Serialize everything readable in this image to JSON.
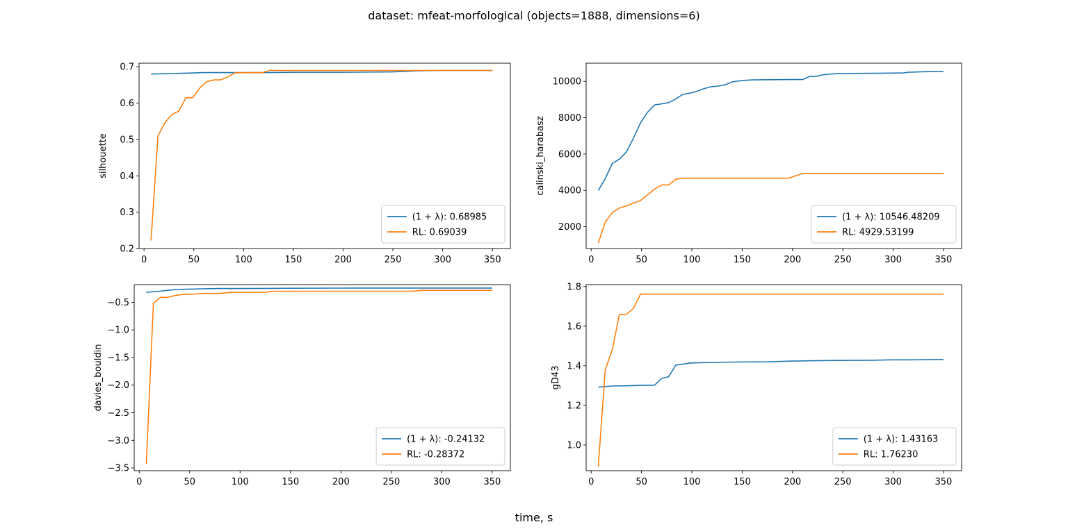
{
  "figure": {
    "title": "dataset: mfeat-morfological (objects=1888, dimensions=6)",
    "xlabel": "time, s"
  },
  "colors": {
    "series_1": "#1f77b4",
    "series_2": "#ff7f0e"
  },
  "chart_data": [
    {
      "type": "line",
      "ylabel": "silhouette",
      "xlim": [
        -5,
        368
      ],
      "ylim": [
        0.2,
        0.71
      ],
      "xticks": [
        0,
        50,
        100,
        150,
        200,
        250,
        300,
        350
      ],
      "yticks": [
        0.2,
        0.3,
        0.4,
        0.5,
        0.6,
        0.7
      ],
      "ytick_labels": [
        "0.2",
        "0.3",
        "0.4",
        "0.5",
        "0.6",
        "0.7"
      ],
      "legend": "lower-right",
      "series": [
        {
          "name": "(1 + λ): 0.68985",
          "x": [
            7,
            20,
            35,
            50,
            60,
            80,
            100,
            120,
            150,
            200,
            250,
            260,
            275,
            300,
            350
          ],
          "y": [
            0.68,
            0.681,
            0.682,
            0.683,
            0.684,
            0.684,
            0.684,
            0.684,
            0.685,
            0.685,
            0.686,
            0.687,
            0.689,
            0.69,
            0.69
          ]
        },
        {
          "name": "RL: 0.69039",
          "x": [
            7,
            14,
            21,
            28,
            35,
            42,
            49,
            56,
            63,
            70,
            77,
            84,
            91,
            105,
            119,
            126,
            150,
            200,
            300,
            350
          ],
          "y": [
            0.222,
            0.51,
            0.546,
            0.569,
            0.578,
            0.615,
            0.615,
            0.642,
            0.659,
            0.664,
            0.664,
            0.672,
            0.683,
            0.684,
            0.684,
            0.69,
            0.69,
            0.69,
            0.69,
            0.69
          ]
        }
      ]
    },
    {
      "type": "line",
      "ylabel": "calinski_harabasz",
      "xlim": [
        -5,
        368
      ],
      "ylim": [
        800,
        11000
      ],
      "xticks": [
        0,
        50,
        100,
        150,
        200,
        250,
        300,
        350
      ],
      "yticks": [
        2000,
        4000,
        6000,
        8000,
        10000
      ],
      "ytick_labels": [
        "2000",
        "4000",
        "6000",
        "8000",
        "10000"
      ],
      "legend": "lower-right",
      "series": [
        {
          "name": "(1 + λ): 10546.48209",
          "x": [
            7,
            14,
            21,
            28,
            35,
            42,
            49,
            56,
            63,
            70,
            77,
            84,
            91,
            98,
            105,
            112,
            119,
            126,
            133,
            140,
            150,
            160,
            180,
            200,
            210,
            217,
            224,
            231,
            245,
            270,
            310,
            315,
            330,
            350
          ],
          "y": [
            3990,
            4650,
            5480,
            5720,
            6110,
            6870,
            7720,
            8300,
            8700,
            8760,
            8830,
            9030,
            9280,
            9350,
            9450,
            9600,
            9700,
            9740,
            9810,
            9970,
            10050,
            10080,
            10090,
            10100,
            10100,
            10270,
            10280,
            10370,
            10430,
            10440,
            10460,
            10500,
            10530,
            10546
          ]
        },
        {
          "name": "RL: 4929.53199",
          "x": [
            7,
            14,
            21,
            28,
            35,
            42,
            49,
            56,
            63,
            70,
            77,
            84,
            91,
            100,
            120,
            150,
            196,
            203,
            210,
            250,
            300,
            350
          ],
          "y": [
            1100,
            2250,
            2780,
            3030,
            3140,
            3300,
            3440,
            3750,
            4070,
            4300,
            4300,
            4610,
            4670,
            4670,
            4670,
            4670,
            4670,
            4800,
            4930,
            4930,
            4930,
            4930
          ]
        }
      ]
    },
    {
      "type": "line",
      "ylabel": "davies_bouldin",
      "xlim": [
        -5,
        368
      ],
      "ylim": [
        -3.55,
        -0.18
      ],
      "xticks": [
        0,
        50,
        100,
        150,
        200,
        250,
        300,
        350
      ],
      "yticks": [
        -3.5,
        -3.0,
        -2.5,
        -2.0,
        -1.5,
        -1.0,
        -0.5
      ],
      "ytick_labels": [
        "−3.5",
        "−3.0",
        "−2.5",
        "−2.0",
        "−1.5",
        "−1.0",
        "−0.5"
      ],
      "legend": "lower-right",
      "series": [
        {
          "name": "(1 + λ): -0.24132",
          "x": [
            7,
            20,
            35,
            50,
            80,
            100,
            150,
            200,
            250,
            300,
            350
          ],
          "y": [
            -0.32,
            -0.3,
            -0.27,
            -0.26,
            -0.25,
            -0.25,
            -0.245,
            -0.243,
            -0.242,
            -0.241,
            -0.241
          ]
        },
        {
          "name": "RL: -0.28372",
          "x": [
            7,
            14,
            21,
            28,
            35,
            42,
            56,
            63,
            80,
            91,
            126,
            133,
            270,
            280,
            300,
            350
          ],
          "y": [
            -3.43,
            -0.52,
            -0.41,
            -0.41,
            -0.38,
            -0.36,
            -0.35,
            -0.34,
            -0.34,
            -0.32,
            -0.32,
            -0.3,
            -0.3,
            -0.284,
            -0.284,
            -0.284
          ]
        }
      ]
    },
    {
      "type": "line",
      "ylabel": "gD43",
      "xlim": [
        -5,
        368
      ],
      "ylim": [
        0.87,
        1.81
      ],
      "xticks": [
        0,
        50,
        100,
        150,
        200,
        250,
        300,
        350
      ],
      "yticks": [
        1.0,
        1.2,
        1.4,
        1.6,
        1.8
      ],
      "ytick_labels": [
        "1.0",
        "1.2",
        "1.4",
        "1.6",
        "1.8"
      ],
      "legend": "lower-right",
      "series": [
        {
          "name": "(1 + λ): 1.43163",
          "x": [
            7,
            14,
            21,
            35,
            50,
            63,
            70,
            77,
            84,
            91,
            98,
            112,
            126,
            140,
            175,
            200,
            240,
            280,
            300,
            320,
            350
          ],
          "y": [
            1.292,
            1.295,
            1.298,
            1.299,
            1.301,
            1.302,
            1.336,
            1.345,
            1.403,
            1.408,
            1.414,
            1.416,
            1.417,
            1.419,
            1.42,
            1.424,
            1.427,
            1.428,
            1.43,
            1.43,
            1.432
          ]
        },
        {
          "name": "RL: 1.76230",
          "x": [
            7,
            14,
            21,
            28,
            35,
            42,
            49,
            100,
            200,
            300,
            350
          ],
          "y": [
            0.89,
            1.38,
            1.48,
            1.66,
            1.66,
            1.69,
            1.762,
            1.762,
            1.762,
            1.762,
            1.762
          ]
        }
      ]
    }
  ]
}
